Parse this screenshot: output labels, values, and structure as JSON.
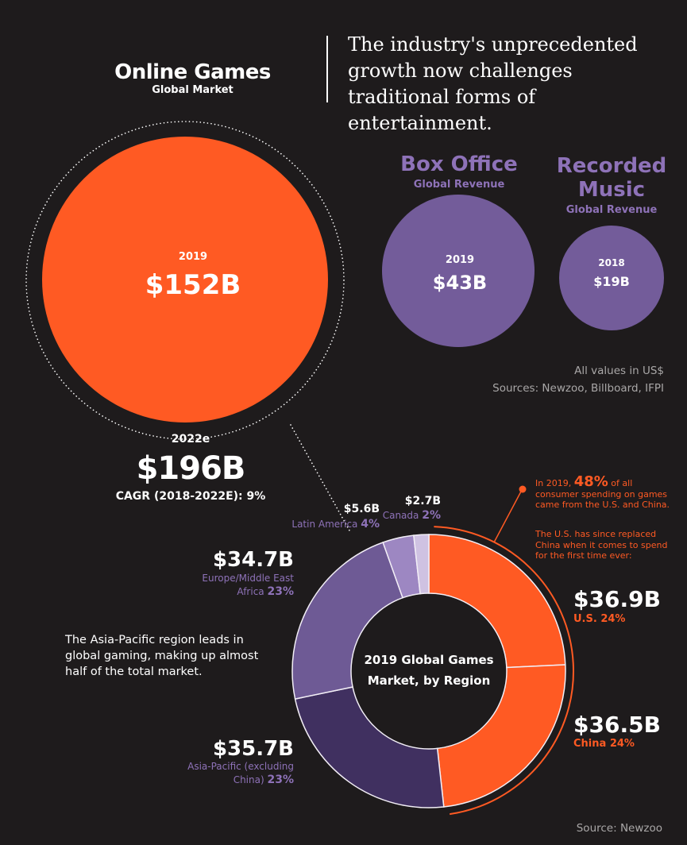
{
  "header": {
    "online_games_title": "Online Games",
    "online_games_sub": "Global Market",
    "headline": "The industry's unprecedented growth now challenges traditional forms of entertainment."
  },
  "bubbles": {
    "online_games": {
      "year": "2019",
      "value": "$152B",
      "value_num": 152,
      "color": "#ff5a23"
    },
    "box_office": {
      "title": "Box Office",
      "sub": "Global Revenue",
      "year": "2019",
      "value": "$43B",
      "value_num": 43,
      "color": "#735c9a"
    },
    "recorded_music": {
      "title": "Recorded Music",
      "sub": "Global Revenue",
      "year": "2018",
      "value": "$19B",
      "value_num": 19,
      "color": "#735c9a"
    }
  },
  "notes": {
    "currency": "All values in US$",
    "sources": "Sources: Newzoo, Billboard, IFPI",
    "bottom_source": "Source: Newzoo"
  },
  "forecast": {
    "year": "2022e",
    "value": "$196B",
    "value_num": 196,
    "cagr": "CAGR (2018-2022E): 9%"
  },
  "region_chart": {
    "center_line1": "2019 Global Games",
    "center_line2": "Market, by Region",
    "apac_note": "The Asia-Pacific region leads in global gaming, making up almost half of the total market.",
    "annotation_pre": "In 2019, ",
    "annotation_pct": "48%",
    "annotation_post": " of all consumer spending on games came from the U.S. and China.",
    "annotation2": "The U.S. has since replaced China when it comes to spend for the first time ever:"
  },
  "chart_data": [
    {
      "type": "bubble",
      "categories": [
        "Online Games 2019",
        "Box Office 2019",
        "Recorded Music 2018"
      ],
      "values": [
        152,
        43,
        19
      ],
      "unit": "US$ billions",
      "forecast_2022e": 196
    },
    {
      "type": "pie",
      "title": "2019 Global Games Market, by Region",
      "unit": "US$ billions",
      "slices": [
        {
          "name": "U.S.",
          "value": 36.9,
          "label": "$36.9B",
          "pct": "24%",
          "color": "#ff5a23"
        },
        {
          "name": "China",
          "value": 36.5,
          "label": "$36.5B",
          "pct": "24%",
          "color": "#ff5a23"
        },
        {
          "name": "Asia-Pacific (excluding China)",
          "value": 35.7,
          "label": "$35.7B",
          "pct": "23%",
          "color": "#403060"
        },
        {
          "name": "Europe/Middle East Africa",
          "value": 34.7,
          "label": "$34.7B",
          "pct": "23%",
          "color": "#6e5a95"
        },
        {
          "name": "Latin America",
          "value": 5.6,
          "label": "$5.6B",
          "pct": "4%",
          "color": "#9d87c2"
        },
        {
          "name": "Canada",
          "value": 2.7,
          "label": "$2.7B",
          "pct": "2%",
          "color": "#cfc2e2"
        }
      ]
    }
  ]
}
